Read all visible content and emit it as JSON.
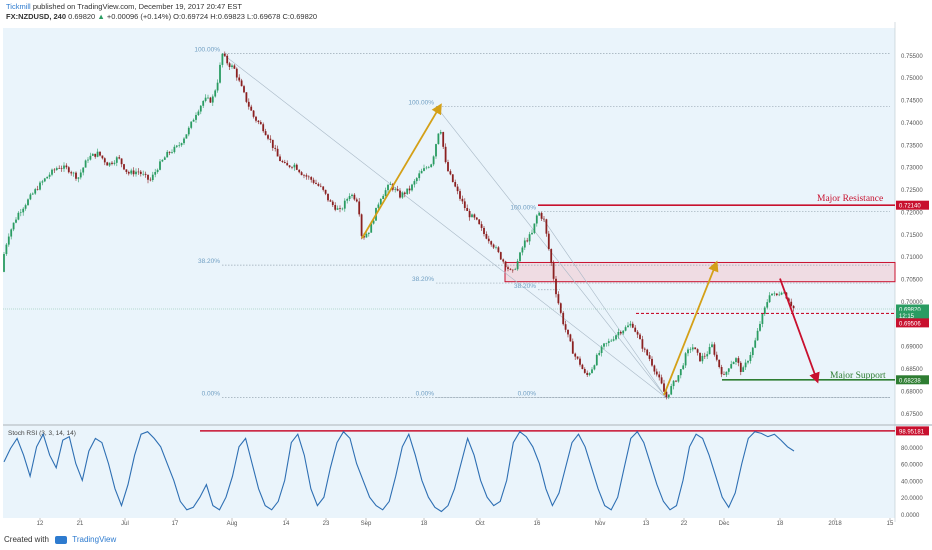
{
  "header": {
    "author": "Tickmill",
    "published": "published on TradingView.com, December 19, 2017 20:47 EST",
    "symbol": "FX:NZDUSD, 240",
    "last": "0.69820",
    "change": "+0.00096 (+0.14%)",
    "ohlc_open": "O:0.69724",
    "ohlc_high": "H:0.69823",
    "ohlc_low": "L:0.69678",
    "ohlc_close": "C:0.69820"
  },
  "footer": {
    "created_with": "Created with",
    "brand": "TradingView"
  },
  "colors": {
    "bg": "#eaf4fb",
    "up": "#2a9c62",
    "down": "#8b2020",
    "resistance": "#c8102e",
    "support": "#2e7d32",
    "arrow_up": "#d4a017",
    "rsi": "#2e6fb3",
    "fib": "#9aa9b5"
  },
  "chart_data": {
    "type": "candlestick",
    "price_axis": {
      "ticks": [
        "0.75500",
        "0.75000",
        "0.74500",
        "0.74000",
        "0.73500",
        "0.73000",
        "0.72500",
        "0.72000",
        "0.71500",
        "0.71000",
        "0.70500",
        "0.70000",
        "0.69500",
        "0.69000",
        "0.68500",
        "0.68000",
        "0.67500"
      ],
      "range": [
        0.6725,
        0.761
      ]
    },
    "time_axis": [
      "12",
      "21",
      "Jul",
      "17",
      "Aug",
      "14",
      "23",
      "Sep",
      "18",
      "Oct",
      "16",
      "Nov",
      "13",
      "22",
      "Dec",
      "18",
      "2018",
      "15"
    ],
    "price_path": [
      [
        0,
        0.7065
      ],
      [
        8,
        0.7145
      ],
      [
        18,
        0.7195
      ],
      [
        28,
        0.7225
      ],
      [
        38,
        0.7255
      ],
      [
        48,
        0.728
      ],
      [
        58,
        0.73
      ],
      [
        68,
        0.7295
      ],
      [
        78,
        0.7275
      ],
      [
        88,
        0.732
      ],
      [
        98,
        0.733
      ],
      [
        108,
        0.7305
      ],
      [
        118,
        0.732
      ],
      [
        128,
        0.7285
      ],
      [
        138,
        0.729
      ],
      [
        150,
        0.7268
      ],
      [
        158,
        0.73
      ],
      [
        168,
        0.733
      ],
      [
        178,
        0.7345
      ],
      [
        188,
        0.738
      ],
      [
        196,
        0.742
      ],
      [
        204,
        0.745
      ],
      [
        212,
        0.7448
      ],
      [
        218,
        0.7495
      ],
      [
        222,
        0.7553
      ],
      [
        228,
        0.753
      ],
      [
        234,
        0.752
      ],
      [
        240,
        0.7485
      ],
      [
        246,
        0.745
      ],
      [
        254,
        0.741
      ],
      [
        262,
        0.739
      ],
      [
        270,
        0.736
      ],
      [
        278,
        0.732
      ],
      [
        286,
        0.73
      ],
      [
        294,
        0.7305
      ],
      [
        302,
        0.7285
      ],
      [
        312,
        0.727
      ],
      [
        322,
        0.725
      ],
      [
        330,
        0.722
      ],
      [
        340,
        0.72
      ],
      [
        350,
        0.724
      ],
      [
        358,
        0.7225
      ],
      [
        362,
        0.714
      ],
      [
        370,
        0.716
      ],
      [
        380,
        0.723
      ],
      [
        390,
        0.726
      ],
      [
        400,
        0.7235
      ],
      [
        410,
        0.725
      ],
      [
        420,
        0.7285
      ],
      [
        432,
        0.731
      ],
      [
        440,
        0.7395
      ],
      [
        446,
        0.73
      ],
      [
        452,
        0.727
      ],
      [
        460,
        0.723
      ],
      [
        468,
        0.7195
      ],
      [
        476,
        0.718
      ],
      [
        484,
        0.715
      ],
      [
        492,
        0.713
      ],
      [
        500,
        0.71
      ],
      [
        506,
        0.708
      ],
      [
        512,
        0.706
      ],
      [
        518,
        0.709
      ],
      [
        524,
        0.713
      ],
      [
        532,
        0.715
      ],
      [
        538,
        0.72
      ],
      [
        544,
        0.718
      ],
      [
        550,
        0.71
      ],
      [
        556,
        0.702
      ],
      [
        562,
        0.696
      ],
      [
        568,
        0.692
      ],
      [
        574,
        0.688
      ],
      [
        580,
        0.686
      ],
      [
        586,
        0.683
      ],
      [
        592,
        0.685
      ],
      [
        598,
        0.688
      ],
      [
        604,
        0.69
      ],
      [
        610,
        0.691
      ],
      [
        618,
        0.693
      ],
      [
        626,
        0.694
      ],
      [
        632,
        0.695
      ],
      [
        638,
        0.692
      ],
      [
        644,
        0.689
      ],
      [
        650,
        0.687
      ],
      [
        656,
        0.684
      ],
      [
        662,
        0.681
      ],
      [
        666,
        0.6784
      ],
      [
        672,
        0.681
      ],
      [
        680,
        0.684
      ],
      [
        686,
        0.688
      ],
      [
        692,
        0.69
      ],
      [
        700,
        0.687
      ],
      [
        706,
        0.688
      ],
      [
        712,
        0.69
      ],
      [
        718,
        0.686
      ],
      [
        724,
        0.683
      ],
      [
        730,
        0.686
      ],
      [
        736,
        0.687
      ],
      [
        742,
        0.684
      ],
      [
        748,
        0.687
      ],
      [
        754,
        0.69
      ],
      [
        760,
        0.695
      ],
      [
        766,
        0.699
      ],
      [
        770,
        0.702
      ],
      [
        776,
        0.701
      ],
      [
        782,
        0.7025
      ],
      [
        788,
        0.7005
      ],
      [
        794,
        0.6982
      ]
    ],
    "fib_levels": [
      {
        "label": "100.00%",
        "price": 0.7553,
        "x1": 222,
        "x2": 890
      },
      {
        "label": "100.00%",
        "price": 0.7435,
        "x1": 436,
        "x2": 890
      },
      {
        "label": "100.00%",
        "price": 0.72,
        "x1": 538,
        "x2": 890
      },
      {
        "label": "38.20%",
        "price": 0.708,
        "x1": 222,
        "x2": 890
      },
      {
        "label": "38.20%",
        "price": 0.704,
        "x1": 436,
        "x2": 890
      },
      {
        "label": "38.20%",
        "price": 0.7025,
        "x1": 538,
        "x2": 560
      },
      {
        "label": "0.00%",
        "price": 0.6784,
        "x1": 222,
        "x2": 890
      },
      {
        "label": "0.00%",
        "price": 0.6784,
        "x1": 436,
        "x2": 890
      },
      {
        "label": "0.00%",
        "price": 0.6784,
        "x1": 538,
        "x2": 890
      }
    ],
    "annotations": {
      "major_resistance": {
        "label": "Major Resistance",
        "price": 0.7214
      },
      "major_support": {
        "label": "Major Support",
        "price": 0.68238
      },
      "resistance_zone": [
        0.7043,
        0.7086
      ],
      "dashed_level": 0.6972
    },
    "price_labels": [
      {
        "text": "0.72140",
        "price": 0.7214,
        "color": "#c8102e"
      },
      {
        "text": "0.69820",
        "price": 0.6982,
        "color": "#2a9c62"
      },
      {
        "text": "12:15",
        "price": 0.6968,
        "color": "#2a9c62"
      },
      {
        "text": "0.69506",
        "price": 0.6951,
        "color": "#c8102e"
      },
      {
        "text": "0.68238",
        "price": 0.68238,
        "color": "#2e7d32"
      }
    ],
    "rsi": {
      "title": "Stoch RSI (3, 3, 14, 14)",
      "ticks": [
        "80.0000",
        "60.0000",
        "40.0000",
        "20.0000",
        "0.0000"
      ],
      "upper_label": "98.95181",
      "upper_value": 98.95,
      "values": [
        62,
        78,
        90,
        70,
        45,
        80,
        95,
        70,
        55,
        88,
        92,
        60,
        40,
        75,
        90,
        85,
        60,
        30,
        10,
        35,
        70,
        95,
        98,
        90,
        80,
        60,
        40,
        15,
        5,
        8,
        20,
        35,
        10,
        5,
        20,
        45,
        80,
        90,
        60,
        30,
        10,
        5,
        15,
        40,
        85,
        95,
        70,
        30,
        10,
        20,
        55,
        85,
        98,
        90,
        60,
        40,
        20,
        10,
        5,
        15,
        45,
        80,
        95,
        70,
        40,
        20,
        8,
        3,
        10,
        30,
        60,
        90,
        70,
        40,
        20,
        10,
        15,
        40,
        85,
        98,
        92,
        80,
        60,
        30,
        10,
        25,
        55,
        85,
        95,
        80,
        55,
        30,
        10,
        5,
        20,
        55,
        90,
        98,
        85,
        60,
        35,
        15,
        5,
        10,
        40,
        80,
        95,
        90,
        70,
        45,
        20,
        8,
        25,
        60,
        90,
        98,
        96,
        92,
        95,
        88,
        80,
        75
      ]
    }
  }
}
